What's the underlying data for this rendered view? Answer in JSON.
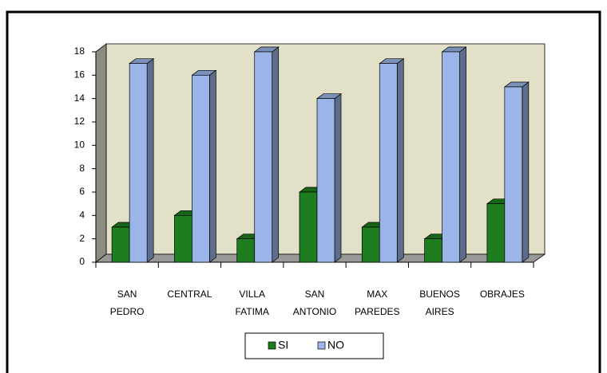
{
  "chart_data": {
    "type": "bar3d",
    "categories": [
      "SAN PEDRO",
      "CENTRAL",
      "VILLA FATIMA",
      "SAN ANTONIO",
      "MAX PAREDES",
      "BUENOS AIRES",
      "OBRAJES"
    ],
    "series": [
      {
        "name": "SI",
        "color": "#1e7d1e",
        "values": [
          3,
          4,
          2,
          6,
          3,
          2,
          5
        ]
      },
      {
        "name": "NO",
        "color": "#9bb5e8",
        "values": [
          17,
          16,
          18,
          14,
          17,
          18,
          15
        ]
      }
    ],
    "ylim": [
      0,
      18
    ],
    "yticks": [
      0,
      2,
      4,
      6,
      8,
      10,
      12,
      14,
      16,
      18
    ],
    "legend": "bottom"
  }
}
